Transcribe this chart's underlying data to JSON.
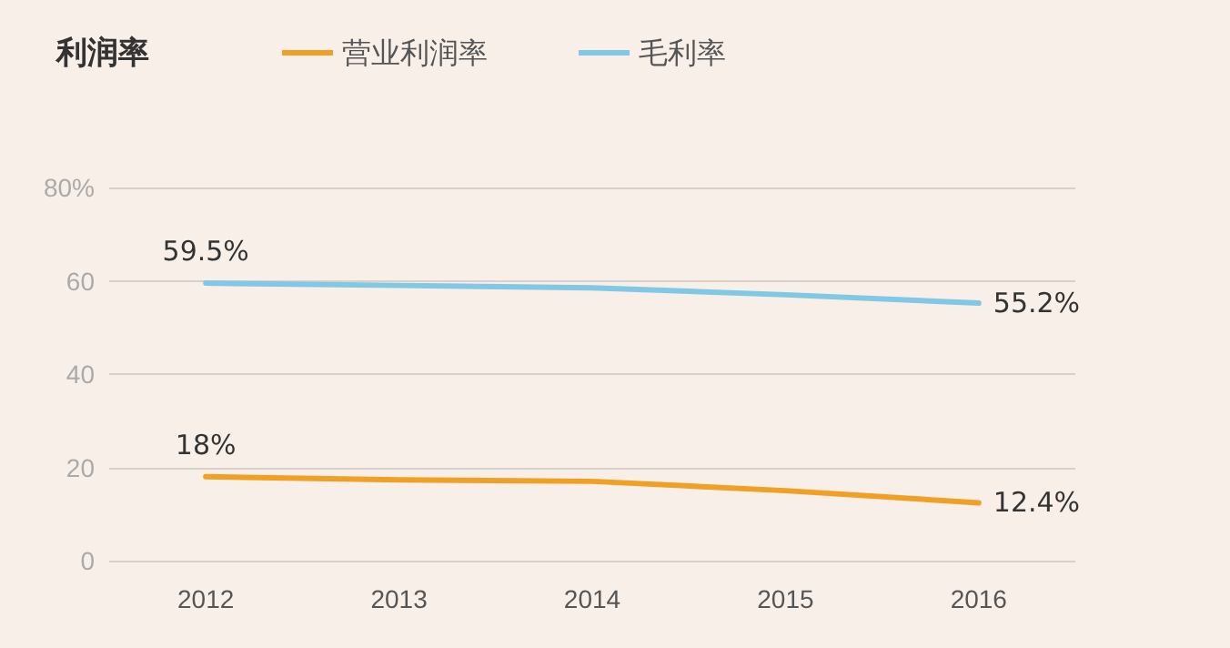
{
  "chart_data": {
    "type": "line",
    "title": "利润率",
    "categories": [
      "2012",
      "2013",
      "2014",
      "2015",
      "2016"
    ],
    "series": [
      {
        "name": "营业利润率",
        "color": "#f0a024",
        "values": [
          18,
          17.3,
          17,
          15,
          12.4
        ],
        "value_labels": [
          "18%",
          null,
          null,
          null,
          "12.4%"
        ]
      },
      {
        "name": "毛利率",
        "color": "#80c8e4",
        "values": [
          59.5,
          59,
          58.5,
          57,
          55.2
        ],
        "value_labels": [
          "59.5%",
          null,
          null,
          null,
          "55.2%"
        ]
      }
    ],
    "ylim": [
      0,
      80
    ],
    "yticks": [
      0,
      20,
      40,
      60,
      {
        "value": 80,
        "label": "80%"
      }
    ],
    "grid": "y",
    "legend": "top",
    "marker": "none",
    "line_style": "solid"
  }
}
